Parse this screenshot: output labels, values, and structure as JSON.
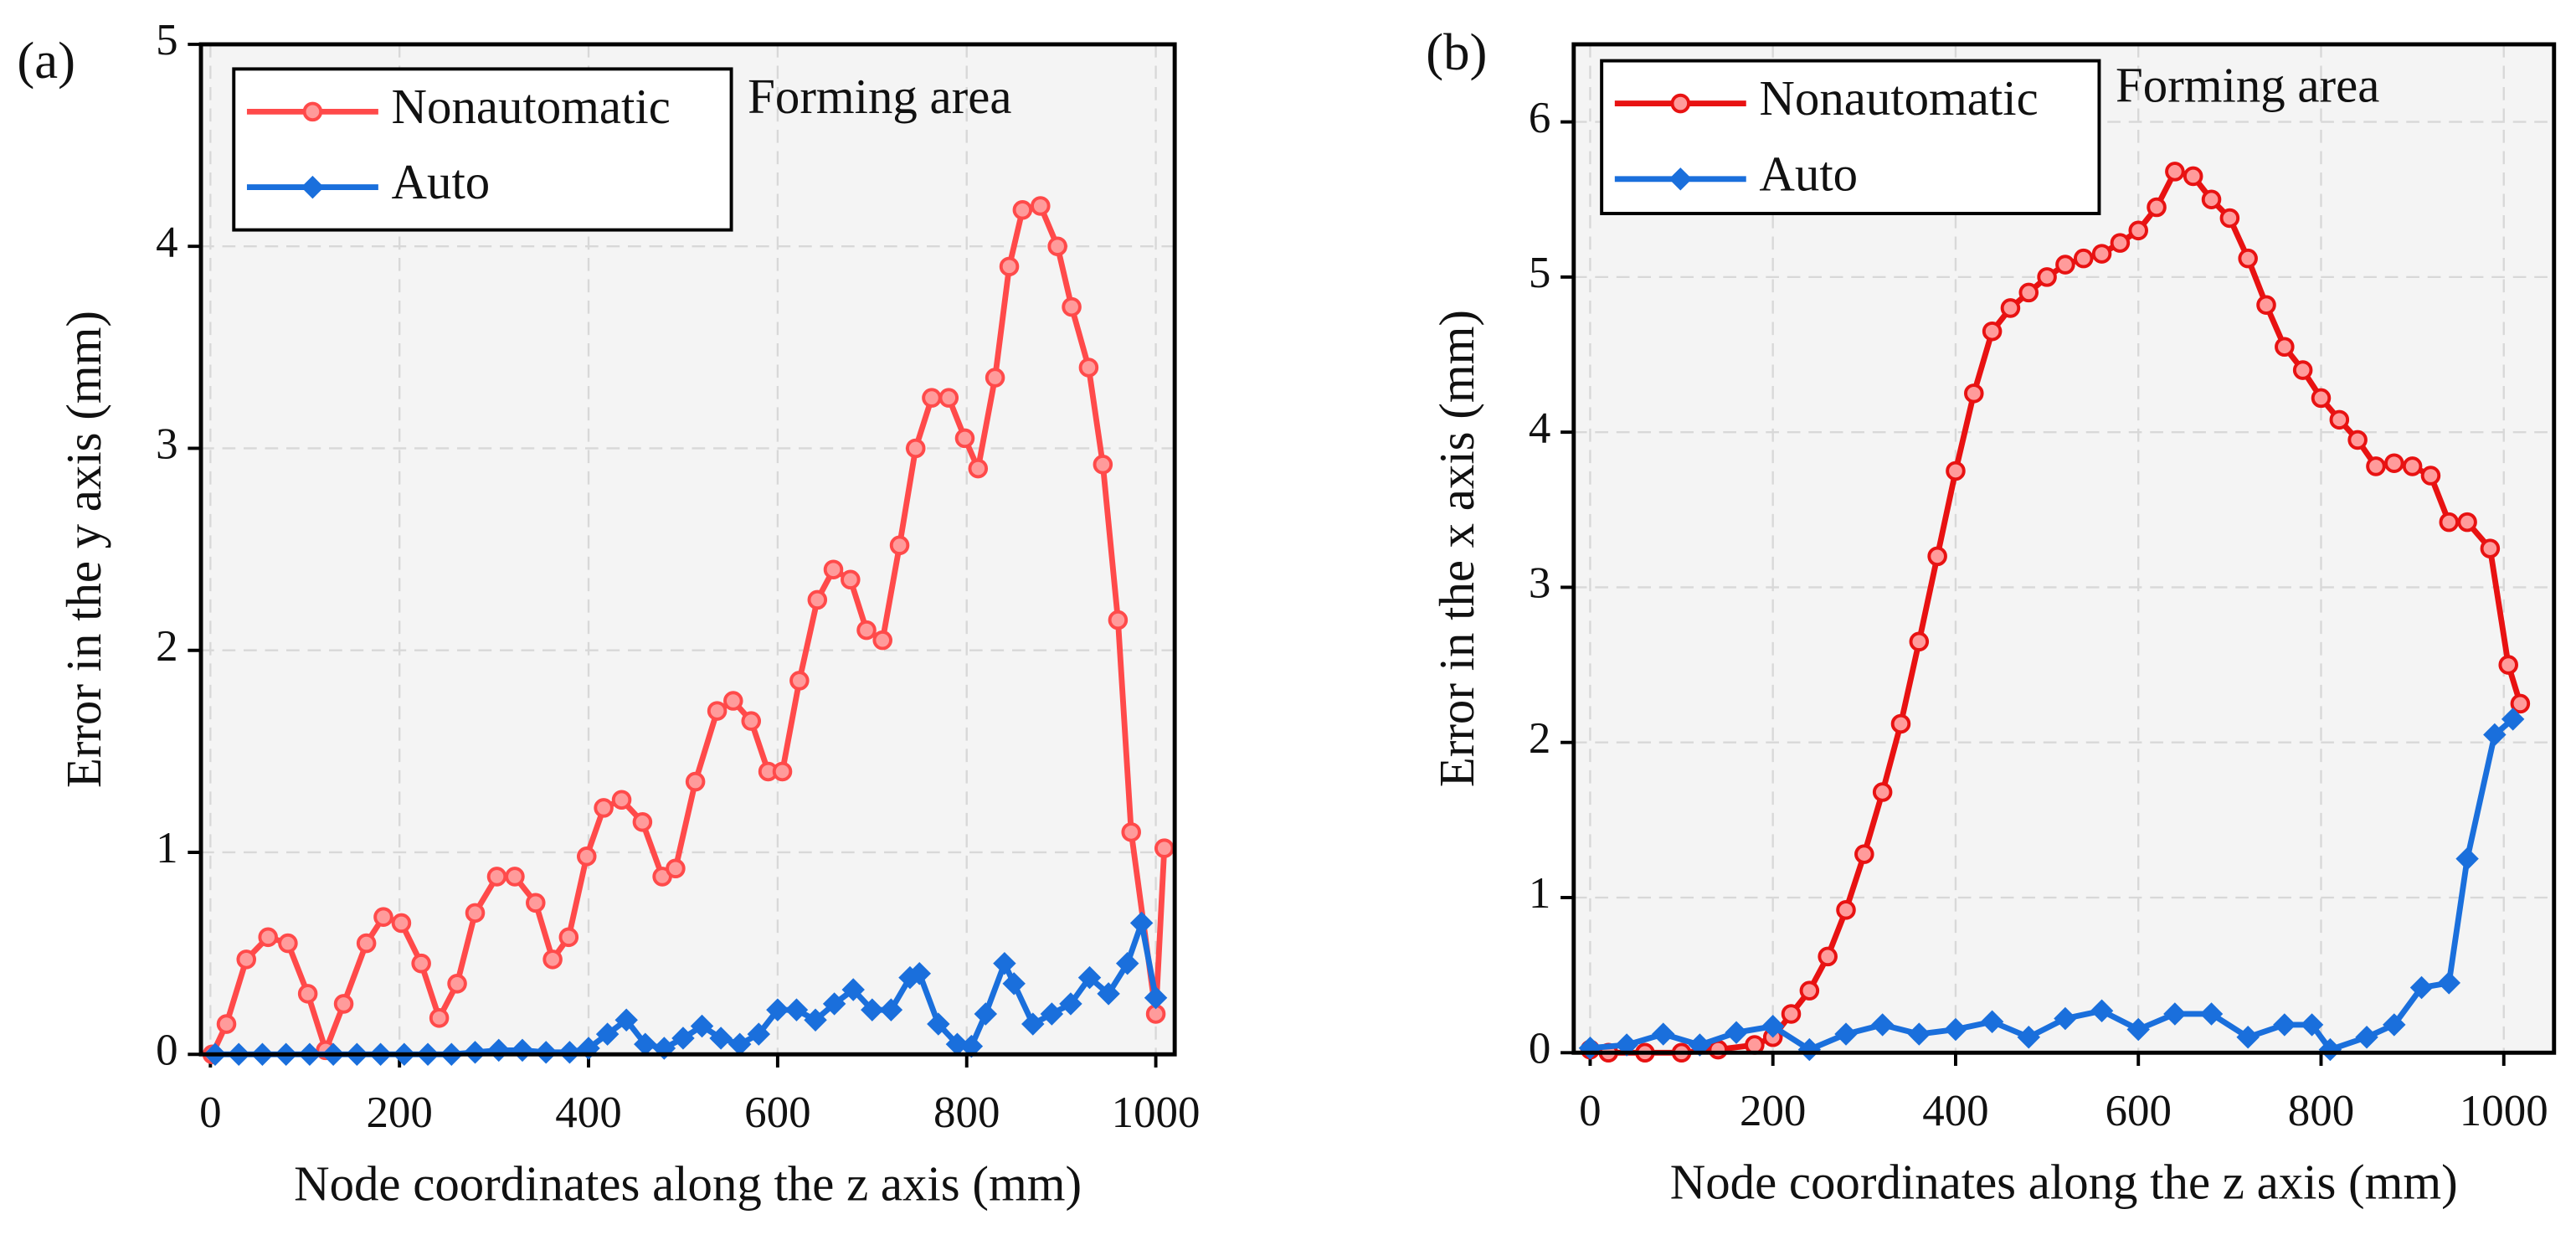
{
  "chart_data": [
    {
      "type": "line",
      "label": "(a)",
      "annotation": "Forming area",
      "x_label": "Node coordinates along the z axis (mm)",
      "y_label": "Error in the y axis (mm)",
      "xlim": [
        -10,
        1020
      ],
      "ylim": [
        0,
        5
      ],
      "xticks": [
        0,
        200,
        400,
        600,
        800,
        1000
      ],
      "yticks": [
        0,
        1,
        2,
        3,
        4,
        5
      ],
      "grid": true,
      "legend": "upper left",
      "series": [
        {
          "name": "Nonautomatic",
          "color": "#ff4a4a",
          "marker": "circle",
          "x": [
            2,
            17,
            38,
            61,
            82,
            103,
            122,
            141,
            165,
            183,
            202,
            223,
            242,
            261,
            280,
            303,
            322,
            344,
            362,
            379,
            398,
            416,
            435,
            457,
            478,
            492,
            513,
            536,
            553,
            572,
            590,
            605,
            623,
            642,
            659,
            677,
            694,
            711,
            729,
            746,
            763,
            781,
            798,
            812,
            830,
            845,
            859,
            878,
            896,
            911,
            929,
            944,
            960,
            974,
            1000,
            1009
          ],
          "values": [
            0,
            0.15,
            0.47,
            0.58,
            0.55,
            0.3,
            0.02,
            0.25,
            0.55,
            0.68,
            0.65,
            0.45,
            0.18,
            0.35,
            0.7,
            0.88,
            0.88,
            0.75,
            0.47,
            0.58,
            0.98,
            1.22,
            1.26,
            1.15,
            0.88,
            0.92,
            1.35,
            1.7,
            1.75,
            1.65,
            1.4,
            1.4,
            1.85,
            2.25,
            2.4,
            2.35,
            2.1,
            2.05,
            2.52,
            3.0,
            3.25,
            3.25,
            3.05,
            2.9,
            3.35,
            3.9,
            4.18,
            4.2,
            4.0,
            3.7,
            3.4,
            2.92,
            2.15,
            1.1,
            0.2,
            1.02
          ]
        },
        {
          "name": "Auto",
          "color": "#1a6fdc",
          "marker": "diamond",
          "x": [
            5,
            30,
            55,
            80,
            105,
            130,
            155,
            180,
            205,
            230,
            255,
            280,
            305,
            330,
            355,
            380,
            400,
            420,
            440,
            460,
            480,
            500,
            520,
            540,
            560,
            580,
            600,
            620,
            640,
            660,
            680,
            700,
            720,
            740,
            750,
            770,
            790,
            805,
            820,
            840,
            850,
            870,
            890,
            910,
            930,
            950,
            970,
            985,
            1000
          ],
          "values": [
            0,
            0,
            0,
            0,
            0,
            0,
            0,
            0,
            0,
            0,
            0,
            0.01,
            0.02,
            0.02,
            0.01,
            0.01,
            0.03,
            0.1,
            0.17,
            0.05,
            0.03,
            0.08,
            0.14,
            0.08,
            0.05,
            0.1,
            0.22,
            0.22,
            0.17,
            0.25,
            0.32,
            0.22,
            0.22,
            0.38,
            0.4,
            0.15,
            0.05,
            0.04,
            0.2,
            0.45,
            0.35,
            0.15,
            0.2,
            0.25,
            0.38,
            0.3,
            0.45,
            0.65,
            0.28
          ]
        }
      ]
    },
    {
      "type": "line",
      "label": "(b)",
      "annotation": "Forming area",
      "x_label": "Node coordinates along the z axis (mm)",
      "y_label": "Error in the x axis (mm)",
      "xlim": [
        -18,
        1055
      ],
      "ylim": [
        0,
        6.5
      ],
      "xticks": [
        0,
        200,
        400,
        600,
        800,
        1000
      ],
      "yticks": [
        0,
        1,
        2,
        3,
        4,
        5,
        6
      ],
      "grid": true,
      "legend": "upper left",
      "series": [
        {
          "name": "Nonautomatic",
          "color": "#e81212",
          "marker": "circle",
          "x": [
            0,
            20,
            60,
            100,
            140,
            180,
            200,
            220,
            240,
            260,
            280,
            300,
            320,
            340,
            360,
            380,
            400,
            420,
            440,
            460,
            480,
            500,
            520,
            540,
            560,
            580,
            600,
            620,
            640,
            660,
            680,
            700,
            720,
            740,
            760,
            780,
            800,
            820,
            840,
            860,
            880,
            900,
            920,
            940,
            960,
            985,
            1005,
            1018
          ],
          "values": [
            0.02,
            0,
            0,
            0,
            0.02,
            0.05,
            0.1,
            0.25,
            0.4,
            0.62,
            0.92,
            1.28,
            1.68,
            2.12,
            2.65,
            3.2,
            3.75,
            4.25,
            4.65,
            4.8,
            4.9,
            5.0,
            5.08,
            5.12,
            5.15,
            5.22,
            5.3,
            5.45,
            5.68,
            5.65,
            5.5,
            5.38,
            5.12,
            4.82,
            4.55,
            4.4,
            4.22,
            4.08,
            3.95,
            3.78,
            3.8,
            3.78,
            3.72,
            3.42,
            3.42,
            3.25,
            2.5,
            2.25
          ]
        },
        {
          "name": "Auto",
          "color": "#1a6fdc",
          "marker": "diamond",
          "x": [
            0,
            40,
            80,
            120,
            160,
            200,
            240,
            280,
            320,
            360,
            400,
            440,
            480,
            520,
            560,
            600,
            640,
            680,
            720,
            760,
            790,
            810,
            850,
            880,
            910,
            940,
            960,
            990,
            1010
          ],
          "values": [
            0.03,
            0.05,
            0.12,
            0.05,
            0.13,
            0.17,
            0.02,
            0.12,
            0.18,
            0.12,
            0.15,
            0.2,
            0.1,
            0.22,
            0.27,
            0.15,
            0.25,
            0.25,
            0.1,
            0.18,
            0.18,
            0.02,
            0.1,
            0.18,
            0.42,
            0.45,
            1.25,
            2.05,
            2.15
          ]
        }
      ]
    }
  ]
}
